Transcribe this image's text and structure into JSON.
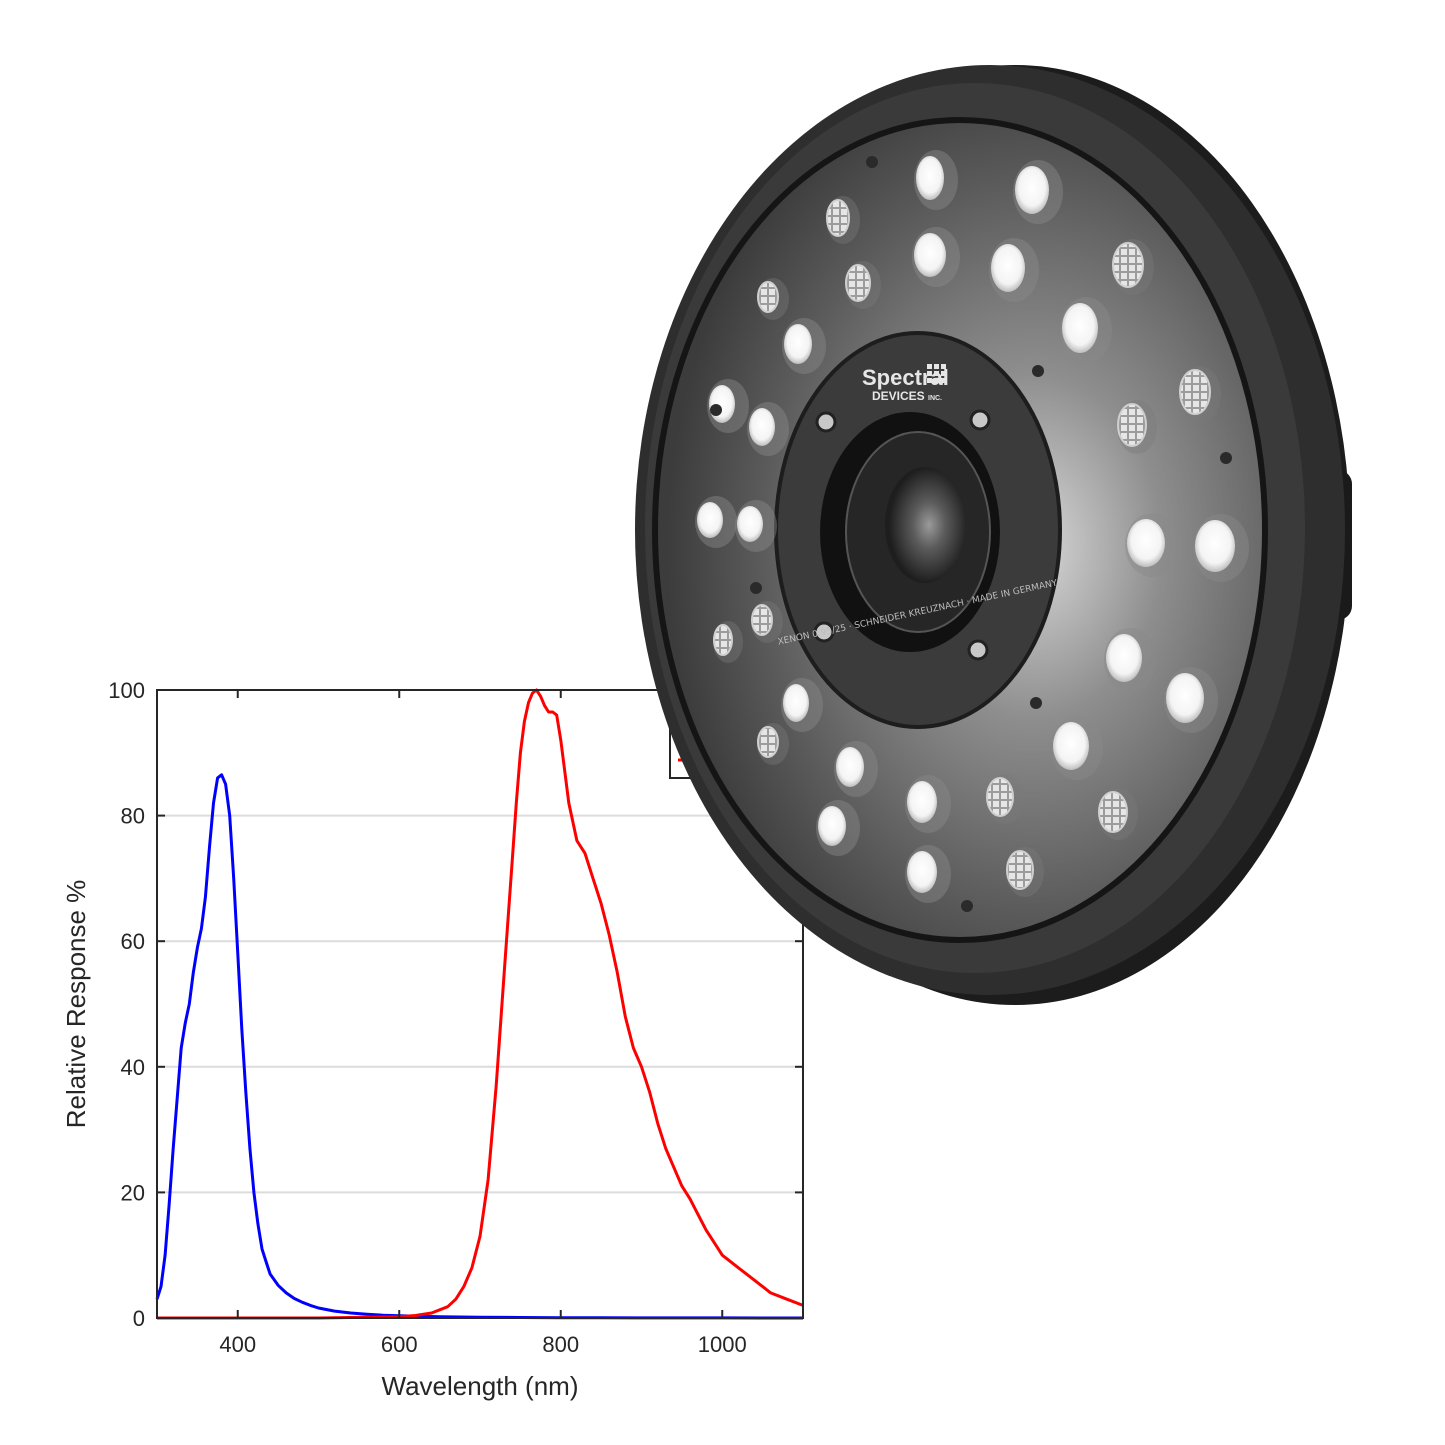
{
  "device": {
    "logo_main": "Spectral",
    "logo_sub": "DEVICES",
    "logo_inc": "INC.",
    "lens_ring_text": "XENON 0.95/25 · SCHNEIDER KREUZNACH · MADE IN GERMANY"
  },
  "chart_data": {
    "type": "line",
    "title": "",
    "xlabel": "Wavelength (nm)",
    "ylabel": "Relative Response %",
    "xlim": [
      300,
      1100
    ],
    "ylim": [
      0,
      100
    ],
    "xticks": [
      400,
      600,
      800,
      1000
    ],
    "yticks": [
      0,
      20,
      40,
      60,
      80,
      100
    ],
    "grid": "horizontal",
    "legend": "top-right (obscured)",
    "series": [
      {
        "color": "#0000ff",
        "x": [
          300,
          305,
          310,
          315,
          320,
          325,
          330,
          335,
          340,
          345,
          350,
          355,
          360,
          365,
          370,
          375,
          380,
          385,
          390,
          395,
          400,
          405,
          410,
          415,
          420,
          425,
          430,
          435,
          440,
          450,
          460,
          470,
          480,
          490,
          500,
          520,
          540,
          560,
          580,
          600,
          650,
          700,
          750,
          800,
          850,
          900,
          950,
          1000,
          1050,
          1100
        ],
        "y": [
          3,
          5,
          10,
          18,
          27,
          35,
          43,
          47,
          50,
          55,
          59,
          62,
          67,
          75,
          82,
          86,
          86.5,
          85,
          80,
          70,
          58,
          46,
          36,
          27,
          20,
          15,
          11,
          9,
          7,
          5.2,
          4,
          3.1,
          2.5,
          2,
          1.6,
          1.1,
          0.8,
          0.6,
          0.45,
          0.35,
          0.2,
          0.12,
          0.08,
          0.05,
          0.03,
          0.02,
          0.01,
          0.01,
          0,
          0
        ]
      },
      {
        "color": "#ff0000",
        "x": [
          300,
          400,
          500,
          600,
          620,
          640,
          660,
          670,
          680,
          690,
          700,
          710,
          720,
          730,
          740,
          745,
          750,
          755,
          760,
          765,
          770,
          775,
          780,
          785,
          790,
          795,
          800,
          805,
          810,
          820,
          830,
          840,
          850,
          860,
          870,
          880,
          890,
          900,
          910,
          920,
          930,
          940,
          950,
          960,
          970,
          980,
          990,
          1000,
          1020,
          1040,
          1060,
          1080,
          1100
        ],
        "y": [
          0,
          0,
          0,
          0.2,
          0.4,
          0.8,
          1.8,
          3,
          5,
          8,
          13,
          22,
          37,
          55,
          73,
          82,
          90,
          95,
          98,
          99.5,
          100,
          99,
          97.5,
          96.5,
          96.5,
          96,
          92,
          87,
          82,
          76,
          74,
          70,
          66,
          61,
          55,
          48,
          43,
          40,
          36,
          31,
          27,
          24,
          21,
          19,
          16.5,
          14,
          12,
          10,
          8,
          6,
          4,
          3,
          2
        ]
      }
    ]
  }
}
